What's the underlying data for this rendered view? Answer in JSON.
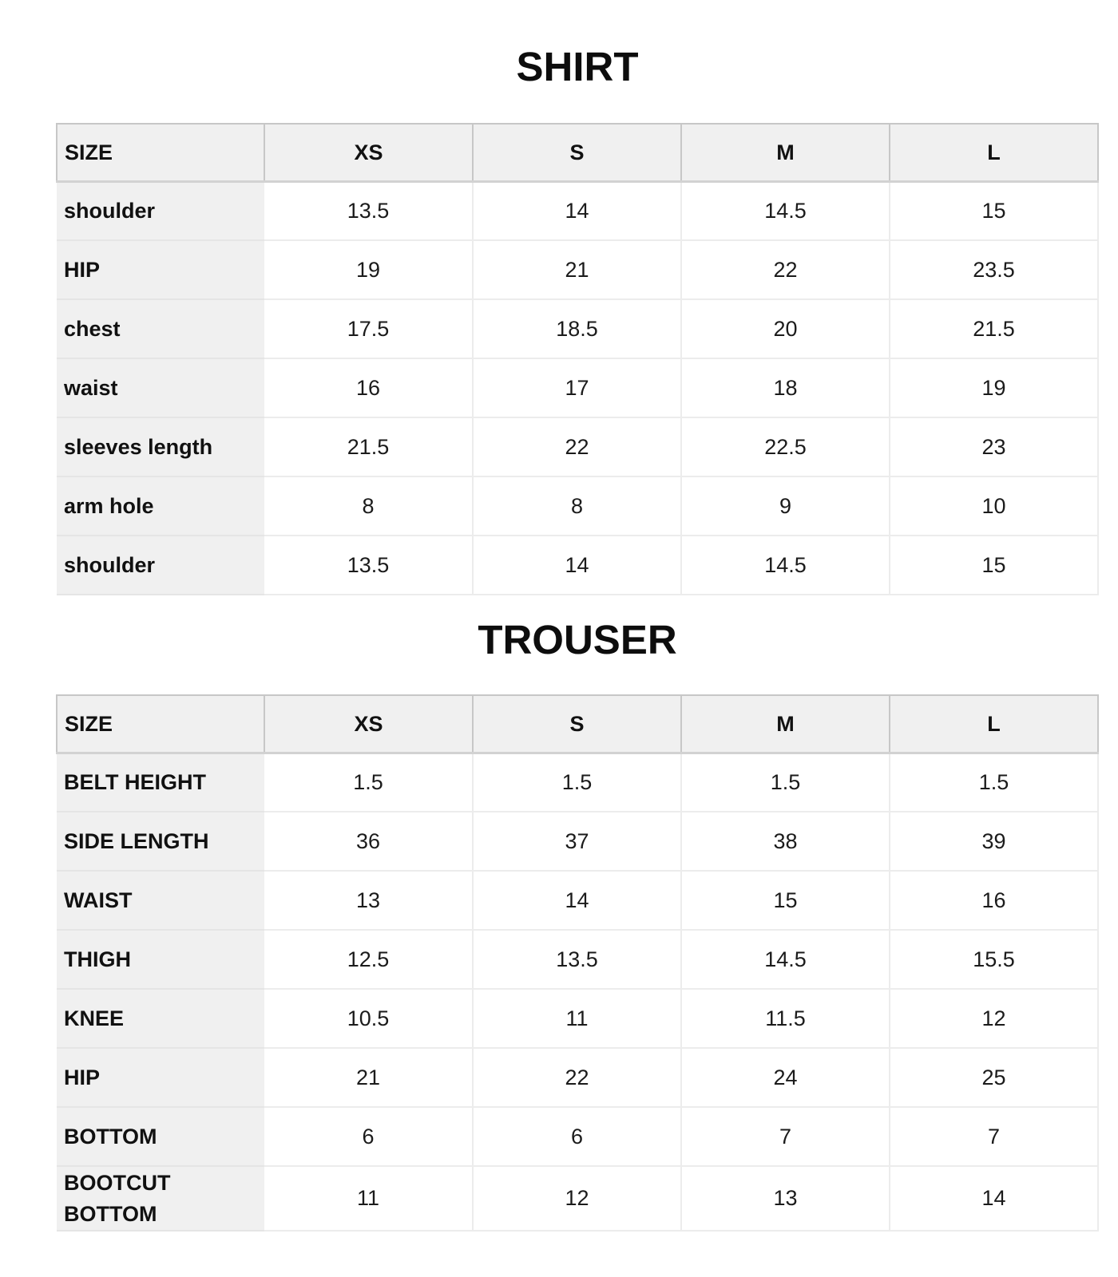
{
  "colors": {
    "page_background": "#ffffff",
    "header_cell_background": "#f0f0f0",
    "label_cell_background": "#f0f0f0",
    "value_cell_background": "#ffffff",
    "header_border": "#c7c7c7",
    "header_bottom_border": "#d2d2d2",
    "grid_line": "#ececec",
    "text": "#111111"
  },
  "sections": [
    {
      "title": "SHIRT",
      "table": {
        "header": [
          "SIZE",
          "XS",
          "S",
          "M",
          "L"
        ],
        "rows": [
          {
            "label": "shoulder",
            "values": [
              "13.5",
              "14",
              "14.5",
              "15"
            ]
          },
          {
            "label": "HIP",
            "values": [
              "19",
              "21",
              "22",
              "23.5"
            ]
          },
          {
            "label": "chest",
            "values": [
              "17.5",
              "18.5",
              "20",
              "21.5"
            ]
          },
          {
            "label": "waist",
            "values": [
              "16",
              "17",
              "18",
              "19"
            ]
          },
          {
            "label": "sleeves length",
            "values": [
              "21.5",
              "22",
              "22.5",
              "23"
            ]
          },
          {
            "label": "arm hole",
            "values": [
              "8",
              "8",
              "9",
              "10"
            ]
          },
          {
            "label": "shoulder",
            "values": [
              "13.5",
              "14",
              "14.5",
              "15"
            ]
          }
        ]
      }
    },
    {
      "title": "TROUSER",
      "table": {
        "header": [
          "SIZE",
          "XS",
          "S",
          "M",
          "L"
        ],
        "rows": [
          {
            "label": "BELT HEIGHT",
            "values": [
              "1.5",
              "1.5",
              "1.5",
              "1.5"
            ]
          },
          {
            "label": "SIDE LENGTH",
            "values": [
              "36",
              "37",
              "38",
              "39"
            ]
          },
          {
            "label": "WAIST",
            "values": [
              "13",
              "14",
              "15",
              "16"
            ]
          },
          {
            "label": "THIGH",
            "values": [
              "12.5",
              "13.5",
              "14.5",
              "15.5"
            ]
          },
          {
            "label": "KNEE",
            "values": [
              "10.5",
              "11",
              "11.5",
              "12"
            ]
          },
          {
            "label": "HIP",
            "values": [
              "21",
              "22",
              "24",
              "25"
            ]
          },
          {
            "label": "BOTTOM",
            "values": [
              "6",
              "6",
              "7",
              "7"
            ]
          },
          {
            "label": "BOOTCUT BOTTOM",
            "values": [
              "11",
              "12",
              "13",
              "14"
            ]
          }
        ]
      }
    }
  ]
}
